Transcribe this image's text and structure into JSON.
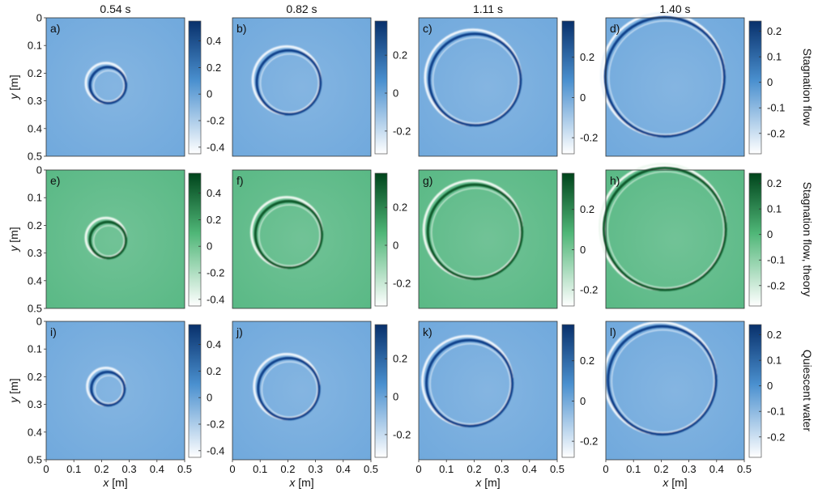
{
  "chart_data": {
    "type": "heatmap",
    "columns": [
      {
        "time_label": "0.54 s"
      },
      {
        "time_label": "0.82 s"
      },
      {
        "time_label": "1.11 s"
      },
      {
        "time_label": "1.40 s"
      }
    ],
    "rows": [
      {
        "name": "Stagnation flow",
        "colormap": "blue",
        "panels": [
          "a)",
          "b)",
          "c)",
          "d)"
        ]
      },
      {
        "name": "Stagnation flow, theory",
        "colormap": "green",
        "panels": [
          "e)",
          "f)",
          "g)",
          "h)"
        ]
      },
      {
        "name": "Quiescent water",
        "colormap": "blue",
        "panels": [
          "i)",
          "j)",
          "k)",
          "l)"
        ]
      }
    ],
    "xlabel_var": "x",
    "xlabel_unit": "[m]",
    "ylabel_var": "y",
    "ylabel_unit": "[m]",
    "xlim": [
      0,
      0.5
    ],
    "ylim": [
      0.5,
      0
    ],
    "x_ticks": [
      "0",
      "0.1",
      "0.2",
      "0.3",
      "0.4",
      "0.5"
    ],
    "y_ticks": [
      "0",
      "0.1",
      "0.2",
      "0.3",
      "0.4",
      "0.5"
    ],
    "colorbars": [
      {
        "range": [
          -0.45,
          0.55
        ],
        "ticks": [
          -0.4,
          -0.2,
          0,
          0.2,
          0.4
        ],
        "tick_labels": [
          "-0.4",
          "-0.2",
          "0",
          "0.2",
          "0.4"
        ]
      },
      {
        "range": [
          -0.32,
          0.38
        ],
        "ticks": [
          -0.2,
          0,
          0.2
        ],
        "tick_labels": [
          "-0.2",
          "0",
          "0.2"
        ]
      },
      {
        "range": [
          -0.28,
          0.38
        ],
        "ticks": [
          -0.2,
          0,
          0.2
        ],
        "tick_labels": [
          "-0.2",
          "0",
          "0.2"
        ]
      },
      {
        "range": [
          -0.28,
          0.24
        ],
        "ticks": [
          -0.2,
          -0.1,
          0,
          0.1,
          0.2
        ],
        "tick_labels": [
          "-0.2",
          "-0.1",
          "0",
          "0.1",
          "0.2"
        ]
      }
    ],
    "rings": [
      [
        {
          "center": [
            0.22,
            0.24
          ],
          "radius": 0.065
        },
        {
          "center": [
            0.2,
            0.23
          ],
          "radius": 0.115
        },
        {
          "center": [
            0.2,
            0.22
          ],
          "radius": 0.165
        },
        {
          "center": [
            0.21,
            0.21
          ],
          "radius": 0.215
        }
      ],
      [
        {
          "center": [
            0.22,
            0.25
          ],
          "radius": 0.065
        },
        {
          "center": [
            0.2,
            0.23
          ],
          "radius": 0.12
        },
        {
          "center": [
            0.2,
            0.22
          ],
          "radius": 0.17
        },
        {
          "center": [
            0.21,
            0.21
          ],
          "radius": 0.22
        }
      ],
      [
        {
          "center": [
            0.22,
            0.24
          ],
          "radius": 0.06
        },
        {
          "center": [
            0.2,
            0.24
          ],
          "radius": 0.11
        },
        {
          "center": [
            0.18,
            0.22
          ],
          "radius": 0.155
        },
        {
          "center": [
            0.2,
            0.21
          ],
          "radius": 0.195
        }
      ]
    ],
    "colors": {
      "blue_min": "#ffffff",
      "blue_mid": "#4a90cf",
      "blue_max": "#08306b",
      "green_min": "#ffffff",
      "green_mid": "#4fb677",
      "green_max": "#00441b"
    }
  }
}
